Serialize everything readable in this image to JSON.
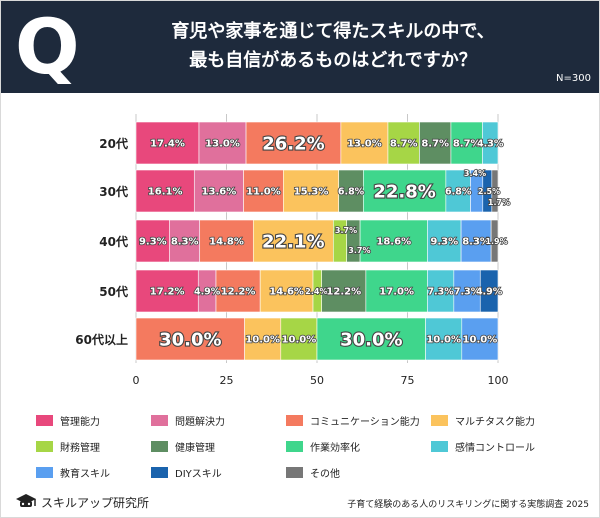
{
  "header": {
    "q_letter": "Q",
    "question_line1": "育児や家事を通じて得たスキルの中で、",
    "question_line2": "最も自信があるものはどれですか？",
    "sample_size": "N=300"
  },
  "footer": {
    "logo_text": "スキルアップ研究所",
    "survey_title": "子育て経験のある人のリスキリングに関する実態調査 2025"
  },
  "chart_data": {
    "type": "bar",
    "orientation": "horizontal",
    "stacked": true,
    "categories": [
      "20代",
      "30代",
      "40代",
      "50代",
      "60代以上"
    ],
    "xlim": [
      0,
      100
    ],
    "xticks": [
      "0",
      "25",
      "50",
      "75",
      "100"
    ],
    "grid": true,
    "legend_position": "bottom",
    "series": [
      {
        "name": "管理能力",
        "color": "#e8487c",
        "values": [
          17.4,
          16.1,
          9.3,
          17.2,
          0
        ],
        "labels": [
          "17.4%",
          "16.1%",
          "9.3%",
          "17.2%",
          ""
        ]
      },
      {
        "name": "問題解決力",
        "color": "#e0709c",
        "values": [
          13.0,
          13.6,
          8.3,
          4.9,
          0
        ],
        "labels": [
          "13.0%",
          "13.6%",
          "8.3%",
          "4.9%",
          ""
        ]
      },
      {
        "name": "コミュニケーション能力",
        "color": "#f47a5f",
        "values": [
          26.2,
          11.0,
          14.8,
          12.2,
          30.0
        ],
        "labels": [
          "26.2%",
          "11.0%",
          "14.8%",
          "12.2%",
          "30.0%"
        ]
      },
      {
        "name": "マルチタスク能力",
        "color": "#fbc35d",
        "values": [
          13.0,
          15.3,
          22.1,
          14.6,
          10.0
        ],
        "labels": [
          "13.0%",
          "15.3%",
          "22.1%",
          "14.6%",
          "10.0%"
        ]
      },
      {
        "name": "財務管理",
        "color": "#a6d646",
        "values": [
          8.7,
          0,
          3.7,
          2.4,
          10.0
        ],
        "labels": [
          "8.7%",
          "",
          "3.7%",
          "2.4%",
          "10.0%"
        ]
      },
      {
        "name": "健康管理",
        "color": "#5e8e62",
        "values": [
          8.7,
          6.8,
          3.7,
          12.2,
          0
        ],
        "labels": [
          "8.7%",
          "6.8%",
          "3.7%",
          "12.2%",
          ""
        ]
      },
      {
        "name": "作業効率化",
        "color": "#3fd68c",
        "values": [
          8.7,
          22.8,
          18.6,
          17.0,
          30.0
        ],
        "labels": [
          "8.7%",
          "22.8%",
          "18.6%",
          "17.0%",
          "30.0%"
        ]
      },
      {
        "name": "感情コントロール",
        "color": "#4fc8d6",
        "values": [
          4.3,
          6.8,
          9.3,
          7.3,
          10.0
        ],
        "labels": [
          "4.3%",
          "6.8%",
          "9.3%",
          "7.3%",
          "10.0%"
        ]
      },
      {
        "name": "教育スキル",
        "color": "#5a9ff0",
        "values": [
          0,
          3.4,
          8.3,
          7.3,
          10.0
        ],
        "labels": [
          "",
          "3.4%",
          "8.3%",
          "7.3%",
          "10.0%"
        ]
      },
      {
        "name": "DIYスキル",
        "color": "#1a63ad",
        "values": [
          0,
          2.5,
          0,
          4.9,
          0
        ],
        "labels": [
          "",
          "2.5%",
          "",
          "4.9%",
          ""
        ]
      },
      {
        "name": "その他",
        "color": "#777777",
        "values": [
          0,
          1.7,
          1.9,
          0,
          0
        ],
        "labels": [
          "",
          "1.7%",
          "1.9%",
          "",
          ""
        ]
      }
    ]
  }
}
